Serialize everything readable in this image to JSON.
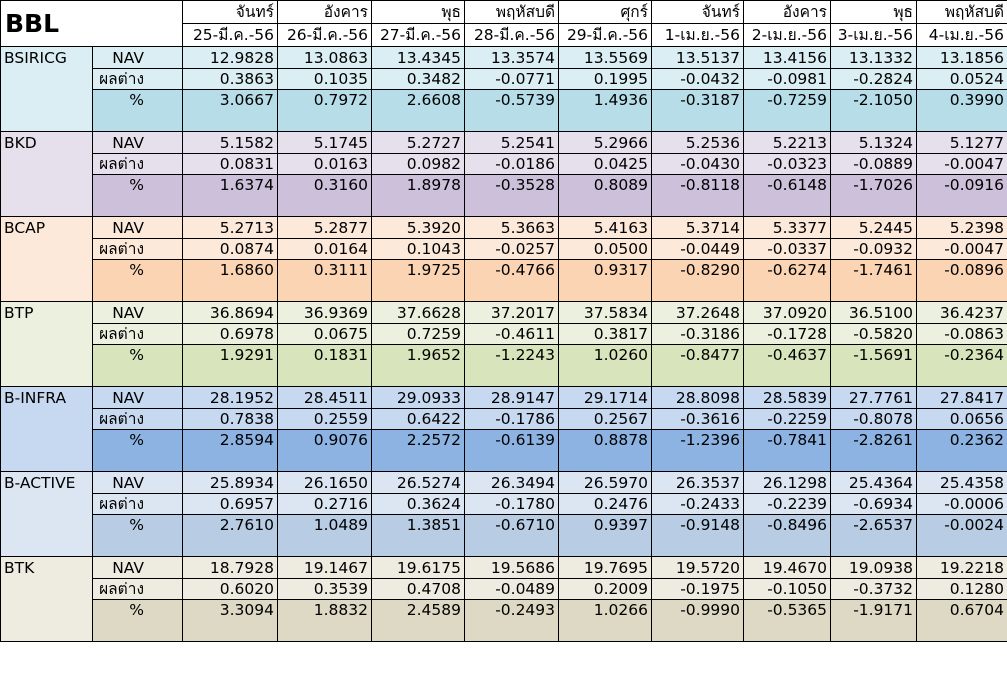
{
  "title": "BBL",
  "days": [
    "จันทร์",
    "อังคาร",
    "พุธ",
    "พฤหัสบดี",
    "ศุกร์",
    "จันทร์",
    "อังคาร",
    "พุธ",
    "พฤหัสบดี"
  ],
  "dates": [
    "25-มี.ค.-56",
    "26-มี.ค.-56",
    "27-มี.ค.-56",
    "28-มี.ค.-56",
    "29-มี.ค.-56",
    "1-เม.ย.-56",
    "2-เม.ย.-56",
    "3-เม.ย.-56",
    "4-เม.ย.-56"
  ],
  "row_labels": {
    "nav": "NAV",
    "diff": "ผลต่าง",
    "pct": "%"
  },
  "funds": [
    {
      "name": "BSIRICG",
      "light": "#daeef3",
      "dark": "#b7dde8",
      "nav": [
        "12.9828",
        "13.0863",
        "13.4345",
        "13.3574",
        "13.5569",
        "13.5137",
        "13.4156",
        "13.1332",
        "13.1856"
      ],
      "diff": [
        "0.3863",
        "0.1035",
        "0.3482",
        "-0.0771",
        "0.1995",
        "-0.0432",
        "-0.0981",
        "-0.2824",
        "0.0524"
      ],
      "pct": [
        "3.0667",
        "0.7972",
        "2.6608",
        "-0.5739",
        "1.4936",
        "-0.3187",
        "-0.7259",
        "-2.1050",
        "0.3990"
      ]
    },
    {
      "name": "BKD",
      "light": "#e5e0ec",
      "dark": "#ccc0da",
      "nav": [
        "5.1582",
        "5.1745",
        "5.2727",
        "5.2541",
        "5.2966",
        "5.2536",
        "5.2213",
        "5.1324",
        "5.1277"
      ],
      "diff": [
        "0.0831",
        "0.0163",
        "0.0982",
        "-0.0186",
        "0.0425",
        "-0.0430",
        "-0.0323",
        "-0.0889",
        "-0.0047"
      ],
      "pct": [
        "1.6374",
        "0.3160",
        "1.8978",
        "-0.3528",
        "0.8089",
        "-0.8118",
        "-0.6148",
        "-1.7026",
        "-0.0916"
      ]
    },
    {
      "name": "BCAP",
      "light": "#fde9d9",
      "dark": "#fbd4b4",
      "nav": [
        "5.2713",
        "5.2877",
        "5.3920",
        "5.3663",
        "5.4163",
        "5.3714",
        "5.3377",
        "5.2445",
        "5.2398"
      ],
      "diff": [
        "0.0874",
        "0.0164",
        "0.1043",
        "-0.0257",
        "0.0500",
        "-0.0449",
        "-0.0337",
        "-0.0932",
        "-0.0047"
      ],
      "pct": [
        "1.6860",
        "0.3111",
        "1.9725",
        "-0.4766",
        "0.9317",
        "-0.8290",
        "-0.6274",
        "-1.7461",
        "-0.0896"
      ]
    },
    {
      "name": "BTP",
      "light": "#ebf1de",
      "dark": "#d7e4bc",
      "nav": [
        "36.8694",
        "36.9369",
        "37.6628",
        "37.2017",
        "37.5834",
        "37.2648",
        "37.0920",
        "36.5100",
        "36.4237"
      ],
      "diff": [
        "0.6978",
        "0.0675",
        "0.7259",
        "-0.4611",
        "0.3817",
        "-0.3186",
        "-0.1728",
        "-0.5820",
        "-0.0863"
      ],
      "pct": [
        "1.9291",
        "0.1831",
        "1.9652",
        "-1.2243",
        "1.0260",
        "-0.8477",
        "-0.4637",
        "-1.5691",
        "-0.2364"
      ]
    },
    {
      "name": "B-INFRA",
      "light": "#c6d9f1",
      "dark": "#8db3e2",
      "nav": [
        "28.1952",
        "28.4511",
        "29.0933",
        "28.9147",
        "29.1714",
        "28.8098",
        "28.5839",
        "27.7761",
        "27.8417"
      ],
      "diff": [
        "0.7838",
        "0.2559",
        "0.6422",
        "-0.1786",
        "0.2567",
        "-0.3616",
        "-0.2259",
        "-0.8078",
        "0.0656"
      ],
      "pct": [
        "2.8594",
        "0.9076",
        "2.2572",
        "-0.6139",
        "0.8878",
        "-1.2396",
        "-0.7841",
        "-2.8261",
        "0.2362"
      ]
    },
    {
      "name": "B-ACTIVE",
      "light": "#dce6f2",
      "dark": "#b8cce4",
      "nav": [
        "25.8934",
        "26.1650",
        "26.5274",
        "26.3494",
        "26.5970",
        "26.3537",
        "26.1298",
        "25.4364",
        "25.4358"
      ],
      "diff": [
        "0.6957",
        "0.2716",
        "0.3624",
        "-0.1780",
        "0.2476",
        "-0.2433",
        "-0.2239",
        "-0.6934",
        "-0.0006"
      ],
      "pct": [
        "2.7610",
        "1.0489",
        "1.3851",
        "-0.6710",
        "0.9397",
        "-0.9148",
        "-0.8496",
        "-2.6537",
        "-0.0024"
      ]
    },
    {
      "name": "BTK",
      "light": "#eeece1",
      "dark": "#ddd9c4",
      "nav": [
        "18.7928",
        "19.1467",
        "19.6175",
        "19.5686",
        "19.7695",
        "19.5720",
        "19.4670",
        "19.0938",
        "19.2218"
      ],
      "diff": [
        "0.6020",
        "0.3539",
        "0.4708",
        "-0.0489",
        "0.2009",
        "-0.1975",
        "-0.1050",
        "-0.3732",
        "0.1280"
      ],
      "pct": [
        "3.3094",
        "1.8832",
        "2.4589",
        "-0.2493",
        "1.0266",
        "-0.9990",
        "-0.5365",
        "-1.9171",
        "0.6704"
      ]
    }
  ]
}
